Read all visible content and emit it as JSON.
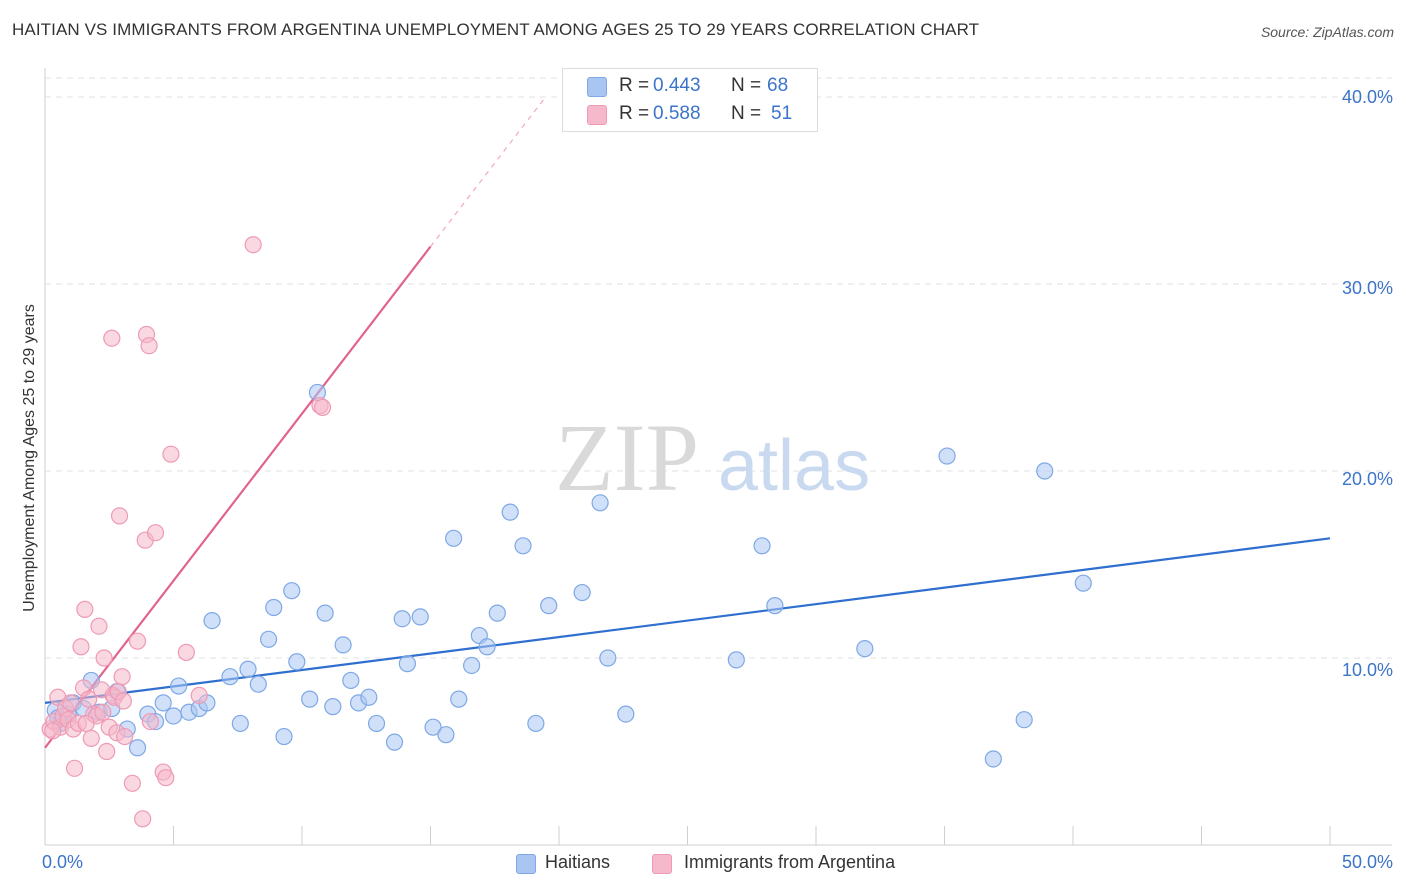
{
  "title": "HAITIAN VS IMMIGRANTS FROM ARGENTINA UNEMPLOYMENT AMONG AGES 25 TO 29 YEARS CORRELATION CHART",
  "source": "Source: ZipAtlas.com",
  "watermark": {
    "zip": "ZIP",
    "atlas": "atlas"
  },
  "colors": {
    "blue_fill": "#a9c6f2",
    "blue_stroke": "#7ea8e6",
    "blue_line": "#2f6fcf",
    "pink_fill": "#f6b8cb",
    "pink_stroke": "#ee9ab4",
    "pink_line": "#e0648e",
    "grid": "#e2e2e2",
    "tick_text": "#3b74c9"
  },
  "stats": [
    {
      "r_label": "R =",
      "r_value": "0.443",
      "n_label": "N =",
      "n_value": "68",
      "color": "#a9c6f2"
    },
    {
      "r_label": "R =",
      "r_value": "0.588",
      "n_label": "N =",
      "n_value": "51",
      "color": "#f6b8cb"
    }
  ],
  "chart_data": {
    "type": "scatter",
    "title": "HAITIAN VS IMMIGRANTS FROM ARGENTINA UNEMPLOYMENT AMONG AGES 25 TO 29 YEARS CORRELATION CHART",
    "xlabel": "",
    "ylabel": "Unemployment Among Ages 25 to 29 years",
    "xlim": [
      0,
      50
    ],
    "ylim": [
      0,
      40
    ],
    "x_tick_labels": [
      "0.0%",
      "50.0%"
    ],
    "y_ticks": [
      10,
      20,
      30,
      40
    ],
    "y_tick_labels": [
      "10.0%",
      "20.0%",
      "30.0%",
      "40.0%"
    ],
    "grid": true,
    "legend_position": "bottom",
    "series": [
      {
        "name": "Haitians",
        "color": "#a9c6f2",
        "trend": {
          "x": [
            0,
            50
          ],
          "y": [
            7.6,
            16.4
          ]
        },
        "points": [
          [
            0.4,
            7.2
          ],
          [
            0.6,
            6.5
          ],
          [
            0.9,
            7.0
          ],
          [
            1.1,
            7.6
          ],
          [
            1.5,
            7.3
          ],
          [
            1.8,
            8.8
          ],
          [
            2.1,
            7.1
          ],
          [
            2.6,
            7.3
          ],
          [
            2.8,
            8.2
          ],
          [
            3.2,
            6.2
          ],
          [
            3.6,
            5.2
          ],
          [
            4.0,
            7.0
          ],
          [
            4.3,
            6.6
          ],
          [
            4.6,
            7.6
          ],
          [
            5.0,
            6.9
          ],
          [
            5.2,
            8.5
          ],
          [
            5.6,
            7.1
          ],
          [
            6.0,
            7.3
          ],
          [
            6.3,
            7.6
          ],
          [
            6.5,
            12.0
          ],
          [
            7.2,
            9.0
          ],
          [
            7.6,
            6.5
          ],
          [
            7.9,
            9.4
          ],
          [
            8.3,
            8.6
          ],
          [
            8.7,
            11.0
          ],
          [
            8.9,
            12.7
          ],
          [
            9.3,
            5.8
          ],
          [
            9.6,
            13.6
          ],
          [
            9.8,
            9.8
          ],
          [
            10.3,
            7.8
          ],
          [
            10.6,
            24.2
          ],
          [
            10.9,
            12.4
          ],
          [
            11.2,
            7.4
          ],
          [
            11.6,
            10.7
          ],
          [
            11.9,
            8.8
          ],
          [
            12.2,
            7.6
          ],
          [
            12.6,
            7.9
          ],
          [
            12.9,
            6.5
          ],
          [
            13.6,
            5.5
          ],
          [
            13.9,
            12.1
          ],
          [
            14.1,
            9.7
          ],
          [
            14.6,
            12.2
          ],
          [
            15.1,
            6.3
          ],
          [
            15.6,
            5.9
          ],
          [
            15.9,
            16.4
          ],
          [
            16.1,
            7.8
          ],
          [
            16.6,
            9.6
          ],
          [
            16.9,
            11.2
          ],
          [
            17.2,
            10.6
          ],
          [
            17.6,
            12.4
          ],
          [
            18.1,
            17.8
          ],
          [
            18.6,
            16.0
          ],
          [
            19.1,
            6.5
          ],
          [
            19.6,
            12.8
          ],
          [
            20.9,
            13.5
          ],
          [
            21.6,
            18.3
          ],
          [
            21.9,
            10.0
          ],
          [
            22.6,
            7.0
          ],
          [
            26.9,
            9.9
          ],
          [
            27.9,
            16.0
          ],
          [
            28.4,
            12.8
          ],
          [
            31.9,
            10.5
          ],
          [
            35.1,
            20.8
          ],
          [
            36.9,
            4.6
          ],
          [
            38.1,
            6.7
          ],
          [
            38.9,
            20.0
          ],
          [
            40.4,
            14.0
          ],
          [
            0.5,
            6.8
          ]
        ]
      },
      {
        "name": "Immigrants from Argentina",
        "color": "#f6b8cb",
        "trend": {
          "x": [
            0,
            15
          ],
          "y": [
            5.2,
            32.0
          ]
        },
        "points": [
          [
            0.2,
            6.2
          ],
          [
            0.35,
            6.6
          ],
          [
            0.5,
            7.9
          ],
          [
            0.6,
            6.3
          ],
          [
            0.7,
            6.9
          ],
          [
            0.8,
            7.3
          ],
          [
            0.9,
            6.7
          ],
          [
            1.0,
            7.6
          ],
          [
            1.1,
            6.2
          ],
          [
            1.15,
            4.1
          ],
          [
            1.3,
            6.5
          ],
          [
            1.4,
            10.6
          ],
          [
            1.5,
            8.4
          ],
          [
            1.55,
            12.6
          ],
          [
            1.7,
            7.8
          ],
          [
            1.8,
            5.7
          ],
          [
            1.9,
            7.0
          ],
          [
            2.0,
            6.9
          ],
          [
            2.1,
            11.7
          ],
          [
            2.2,
            8.3
          ],
          [
            2.25,
            7.1
          ],
          [
            2.3,
            10.0
          ],
          [
            2.4,
            5.0
          ],
          [
            2.5,
            6.3
          ],
          [
            2.6,
            27.1
          ],
          [
            2.65,
            8.0
          ],
          [
            2.7,
            7.9
          ],
          [
            2.8,
            6.0
          ],
          [
            2.85,
            8.2
          ],
          [
            2.9,
            17.6
          ],
          [
            3.0,
            9.0
          ],
          [
            3.05,
            7.7
          ],
          [
            3.1,
            5.8
          ],
          [
            3.4,
            3.3
          ],
          [
            3.6,
            10.9
          ],
          [
            3.9,
            16.3
          ],
          [
            3.95,
            27.3
          ],
          [
            4.05,
            26.7
          ],
          [
            4.1,
            6.6
          ],
          [
            4.3,
            16.7
          ],
          [
            4.6,
            3.9
          ],
          [
            4.7,
            3.6
          ],
          [
            4.9,
            20.9
          ],
          [
            5.5,
            10.3
          ],
          [
            6.0,
            8.0
          ],
          [
            8.1,
            32.1
          ],
          [
            10.7,
            23.5
          ],
          [
            10.8,
            23.4
          ],
          [
            3.8,
            1.4
          ],
          [
            0.3,
            6.1
          ],
          [
            1.6,
            6.5
          ]
        ]
      }
    ]
  }
}
